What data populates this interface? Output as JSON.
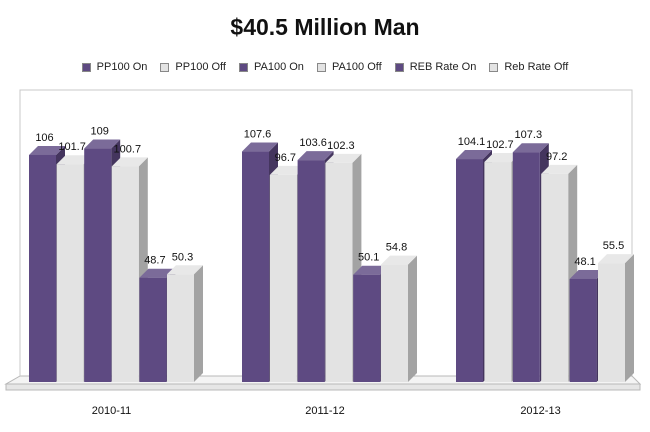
{
  "chart_data": {
    "type": "bar",
    "title": "$40.5 Million Man",
    "categories": [
      "2010-11",
      "2011-12",
      "2012-13"
    ],
    "series": [
      {
        "name": "PP100 On",
        "color": "#5e4a82",
        "values": [
          106,
          107.6,
          104.1
        ],
        "labels": [
          "106",
          "107.6",
          "104.1"
        ]
      },
      {
        "name": "PP100 Off",
        "color": "#e3e3e3",
        "values": [
          101.7,
          96.7,
          102.7
        ],
        "labels": [
          "101.7",
          "96.7",
          "102.7"
        ]
      },
      {
        "name": "PA100 On",
        "color": "#5e4a82",
        "values": [
          109,
          103.6,
          107.3
        ],
        "labels": [
          "109",
          "103.6",
          "107.3"
        ]
      },
      {
        "name": "PA100 Off",
        "color": "#e3e3e3",
        "values": [
          100.7,
          102.3,
          97.2
        ],
        "labels": [
          "100.7",
          "102.3",
          "97.2"
        ]
      },
      {
        "name": "REB Rate  On",
        "color": "#5e4a82",
        "values": [
          48.7,
          50.1,
          48.1
        ],
        "labels": [
          "48.7",
          "50.1",
          "48.1"
        ]
      },
      {
        "name": "Reb Rate  Off",
        "color": "#e3e3e3",
        "values": [
          50.3,
          54.8,
          55.5
        ],
        "labels": [
          "50.3",
          "54.8",
          "55.5"
        ]
      }
    ],
    "ylim": [
      0,
      120
    ],
    "grid": false,
    "legend_position": "top",
    "style": "3d clustered columns"
  }
}
